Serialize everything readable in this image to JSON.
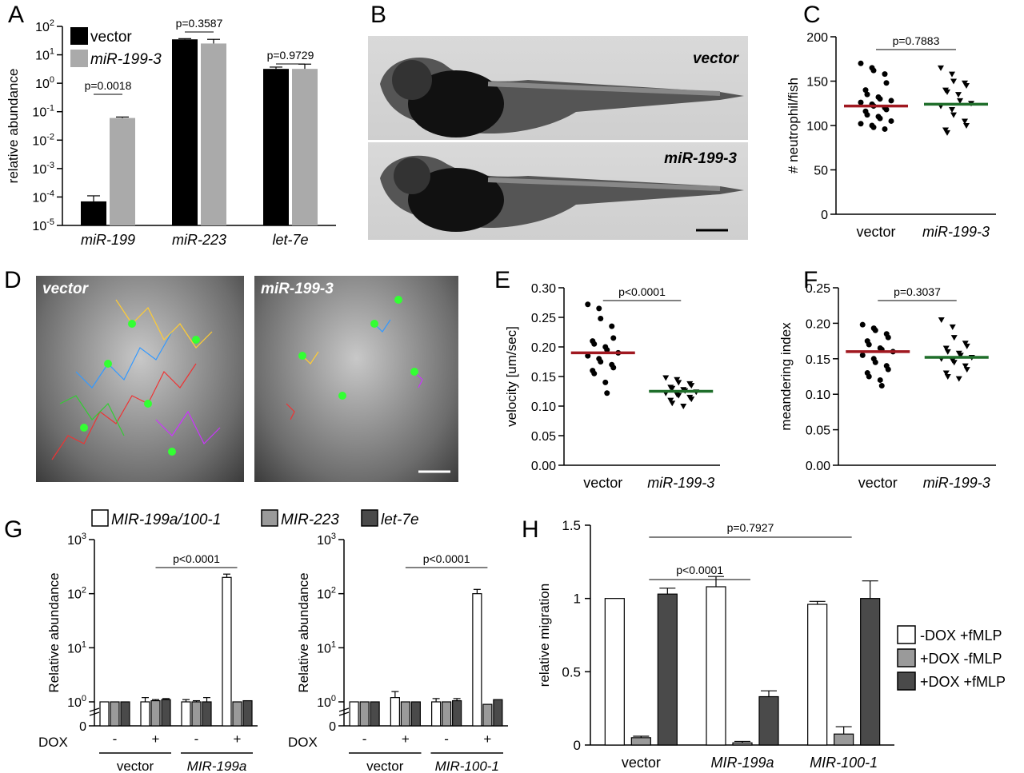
{
  "panels": {
    "A": {
      "letter": "A"
    },
    "B": {
      "letter": "B"
    },
    "C": {
      "letter": "C"
    },
    "D": {
      "letter": "D"
    },
    "E": {
      "letter": "E"
    },
    "F": {
      "letter": "F"
    },
    "G": {
      "letter": "G"
    },
    "H": {
      "letter": "H"
    }
  },
  "panel_b": {
    "label_top": "vector",
    "label_bottom": "miR-199-3"
  },
  "panel_d": {
    "label_left": "vector",
    "label_right": "miR-199-3"
  },
  "chart_data": [
    {
      "id": "A",
      "type": "bar",
      "ylabel": "relative abundance",
      "yscale": "log",
      "ylim": [
        1e-05,
        100
      ],
      "yticks": [
        "10^2",
        "10^1",
        "10^0",
        "10^-1",
        "10^-2",
        "10^-3",
        "10^-4",
        "10^-5"
      ],
      "categories": [
        "miR-199",
        "miR-223",
        "let-7e"
      ],
      "legend_position": "top-left",
      "series": [
        {
          "name": "vector",
          "color": "#000000",
          "values": [
            7e-05,
            35,
            3.2
          ],
          "errors": [
            4e-05,
            2,
            0.5
          ]
        },
        {
          "name": "miR-199-3",
          "color": "#aaaaaa",
          "values": [
            0.06,
            25,
            3.2
          ],
          "errors": [
            0.005,
            10,
            1.5
          ]
        }
      ],
      "annotations": [
        "p=0.0018",
        "p=0.3587",
        "p=0.9729"
      ]
    },
    {
      "id": "C",
      "type": "scatter",
      "ylabel": "# neutrophil/fish",
      "ylim": [
        0,
        200
      ],
      "yticks": [
        0,
        50,
        100,
        150,
        200
      ],
      "categories": [
        "vector",
        "miR-199-3"
      ],
      "series": [
        {
          "name": "vector",
          "marker": "circle",
          "mean": 122,
          "mean_color": "#a01820",
          "values": [
            170,
            165,
            162,
            158,
            148,
            140,
            135,
            132,
            130,
            128,
            126,
            124,
            122,
            120,
            118,
            116,
            112,
            110,
            108,
            105,
            102,
            100,
            98,
            96
          ]
        },
        {
          "name": "miR-199-3",
          "marker": "triangle-down",
          "mean": 124,
          "mean_color": "#1f6e2a",
          "values": [
            165,
            158,
            150,
            148,
            145,
            140,
            138,
            135,
            128,
            125,
            122,
            118,
            112,
            105,
            100,
            95,
            92
          ]
        }
      ],
      "annotations": [
        "p=0.7883"
      ]
    },
    {
      "id": "E",
      "type": "scatter",
      "ylabel": "velocity [um/sec]",
      "ylim": [
        0,
        0.3
      ],
      "yticks": [
        "0.00",
        "0.05",
        "0.10",
        "0.15",
        "0.20",
        "0.25",
        "0.30"
      ],
      "categories": [
        "vector",
        "miR-199-3"
      ],
      "series": [
        {
          "name": "vector",
          "marker": "circle",
          "mean": 0.19,
          "mean_color": "#a01820",
          "values": [
            0.272,
            0.265,
            0.248,
            0.235,
            0.215,
            0.21,
            0.205,
            0.2,
            0.195,
            0.19,
            0.185,
            0.18,
            0.175,
            0.17,
            0.165,
            0.16,
            0.155,
            0.14,
            0.122
          ]
        },
        {
          "name": "miR-199-3",
          "marker": "triangle-down",
          "mean": 0.125,
          "mean_color": "#1f6e2a",
          "values": [
            0.148,
            0.145,
            0.14,
            0.138,
            0.135,
            0.132,
            0.13,
            0.128,
            0.126,
            0.124,
            0.122,
            0.12,
            0.118,
            0.115,
            0.112,
            0.11,
            0.105,
            0.1
          ]
        }
      ],
      "annotations": [
        "p<0.0001"
      ]
    },
    {
      "id": "F",
      "type": "scatter",
      "ylabel": "meandering index",
      "ylim": [
        0,
        0.25
      ],
      "yticks": [
        "0.00",
        "0.05",
        "0.10",
        "0.15",
        "0.20",
        "0.25"
      ],
      "categories": [
        "vector",
        "miR-199-3"
      ],
      "series": [
        {
          "name": "vector",
          "marker": "circle",
          "mean": 0.16,
          "mean_color": "#a01820",
          "values": [
            0.198,
            0.193,
            0.19,
            0.185,
            0.18,
            0.175,
            0.17,
            0.165,
            0.163,
            0.16,
            0.155,
            0.15,
            0.145,
            0.14,
            0.135,
            0.13,
            0.125,
            0.12,
            0.112
          ]
        },
        {
          "name": "miR-199-3",
          "marker": "triangle-down",
          "mean": 0.152,
          "mean_color": "#1f6e2a",
          "values": [
            0.205,
            0.195,
            0.18,
            0.172,
            0.168,
            0.165,
            0.16,
            0.158,
            0.155,
            0.152,
            0.15,
            0.148,
            0.145,
            0.14,
            0.135,
            0.13,
            0.125,
            0.122
          ]
        }
      ],
      "annotations": [
        "p=0.3037"
      ]
    },
    {
      "id": "G1",
      "type": "bar",
      "ylabel": "Relative abundance",
      "yscale": "log",
      "ylim": [
        1,
        1000
      ],
      "yticks": [
        "10^3",
        "10^2",
        "10^1",
        "10^0",
        "0"
      ],
      "xlabel": "DOX",
      "dox": [
        "-",
        "+",
        "-",
        "+"
      ],
      "groups": [
        "vector",
        "MIR-199a"
      ],
      "legend_position": "top",
      "series": [
        {
          "name": "MIR-199a/100-1",
          "color": "#ffffff",
          "values": [
            1,
            1,
            1,
            200
          ],
          "errors": [
            0,
            0.2,
            0.1,
            30
          ]
        },
        {
          "name": "MIR-223",
          "color": "#9a9a9a",
          "values": [
            1,
            1.05,
            1,
            1
          ],
          "errors": [
            0,
            0.05,
            0.05,
            0
          ]
        },
        {
          "name": "let-7e",
          "color": "#4a4a4a",
          "values": [
            1,
            1.1,
            1,
            1.05
          ],
          "errors": [
            0,
            0.05,
            0.2,
            0
          ]
        }
      ],
      "annotations": [
        "p<0.0001"
      ]
    },
    {
      "id": "G2",
      "type": "bar",
      "ylabel": "Relative abundance",
      "yscale": "log",
      "ylim": [
        1,
        1000
      ],
      "yticks": [
        "10^3",
        "10^2",
        "10^1",
        "10^0",
        "0"
      ],
      "xlabel": "DOX",
      "dox": [
        "-",
        "+",
        "-",
        "+"
      ],
      "groups": [
        "vector",
        "MIR-100-1"
      ],
      "series": [
        {
          "name": "MIR-199a/100-1",
          "color": "#ffffff",
          "values": [
            1,
            1.2,
            1,
            100
          ],
          "errors": [
            0,
            0.35,
            0.15,
            20
          ]
        },
        {
          "name": "MIR-223",
          "color": "#9a9a9a",
          "values": [
            1,
            1,
            1,
            0.9
          ],
          "errors": [
            0,
            0,
            0,
            0
          ]
        },
        {
          "name": "let-7e",
          "color": "#4a4a4a",
          "values": [
            1,
            1,
            1.05,
            1.1
          ],
          "errors": [
            0,
            0,
            0.1,
            0
          ]
        }
      ],
      "annotations": [
        "p<0.0001"
      ]
    },
    {
      "id": "H",
      "type": "bar",
      "ylabel": "relative migration",
      "ylim": [
        0,
        1.5
      ],
      "yticks": [
        "0",
        "0.5",
        "1",
        "1.5"
      ],
      "categories": [
        "vector",
        "MIR-199a",
        "MIR-100-1"
      ],
      "legend_position": "right",
      "series": [
        {
          "name": "-DOX +fMLP",
          "color": "#ffffff",
          "values": [
            1,
            1.08,
            0.96
          ],
          "errors": [
            0,
            0.07,
            0.02
          ]
        },
        {
          "name": "+DOX -fMLP",
          "color": "#9a9a9a",
          "values": [
            0.05,
            0.015,
            0.075
          ],
          "errors": [
            0.01,
            0.01,
            0.05
          ]
        },
        {
          "name": "+DOX +fMLP",
          "color": "#4a4a4a",
          "values": [
            1.03,
            0.33,
            1
          ],
          "errors": [
            0.04,
            0.04,
            0.12
          ]
        }
      ],
      "annotations": [
        "p=0.7927",
        "p<0.0001"
      ]
    }
  ]
}
